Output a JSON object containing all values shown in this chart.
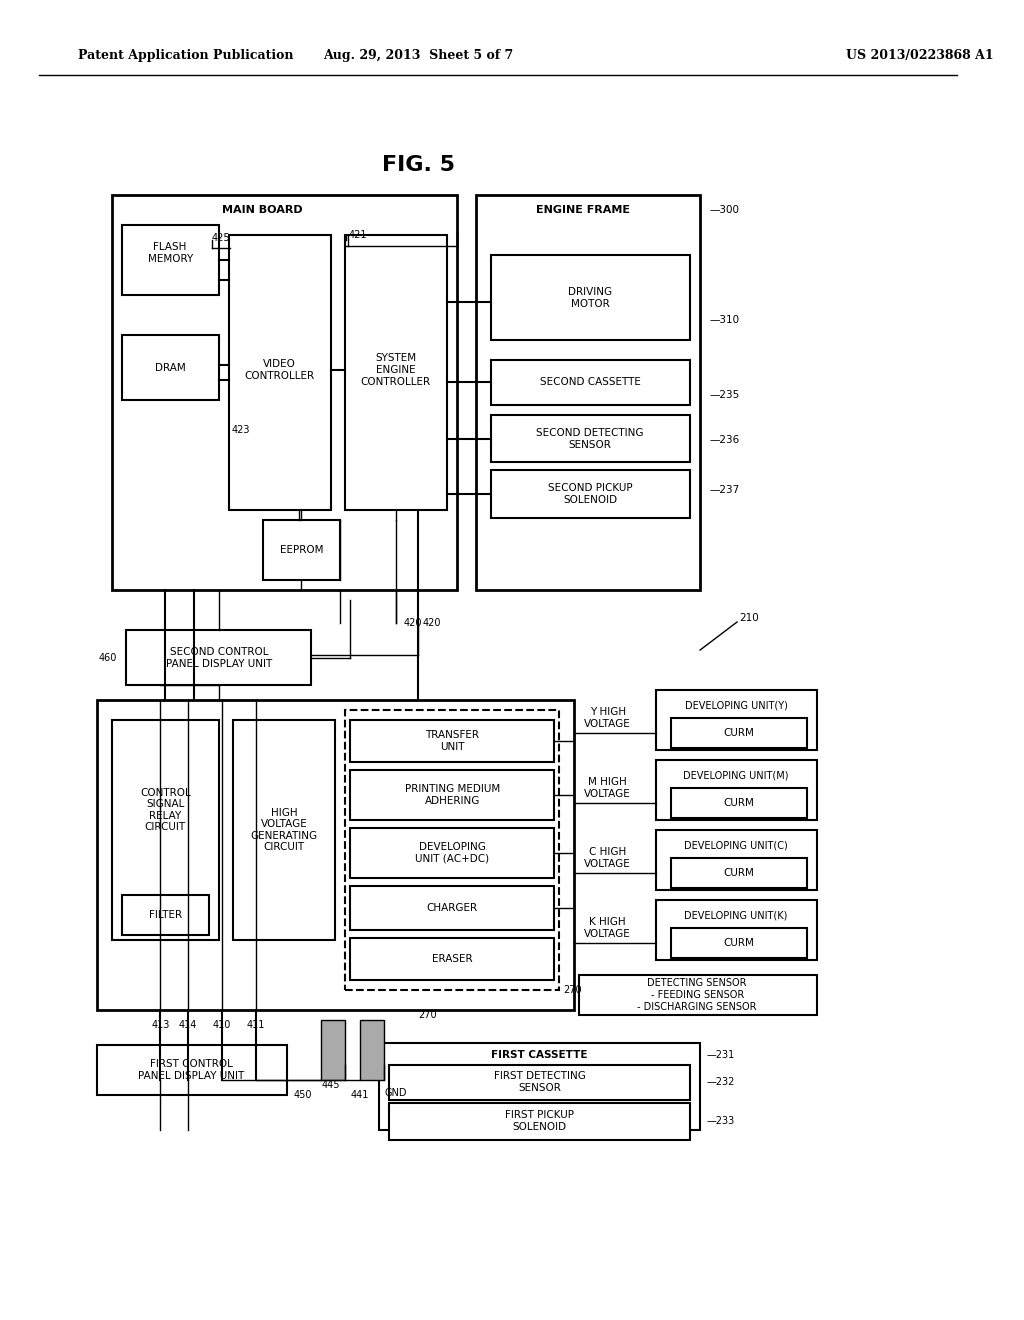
{
  "title": "FIG. 5",
  "header_left": "Patent Application Publication",
  "header_mid": "Aug. 29, 2013  Sheet 5 of 7",
  "header_right": "US 2013/0223868 A1",
  "bg_color": "#ffffff",
  "line_color": "#000000"
}
